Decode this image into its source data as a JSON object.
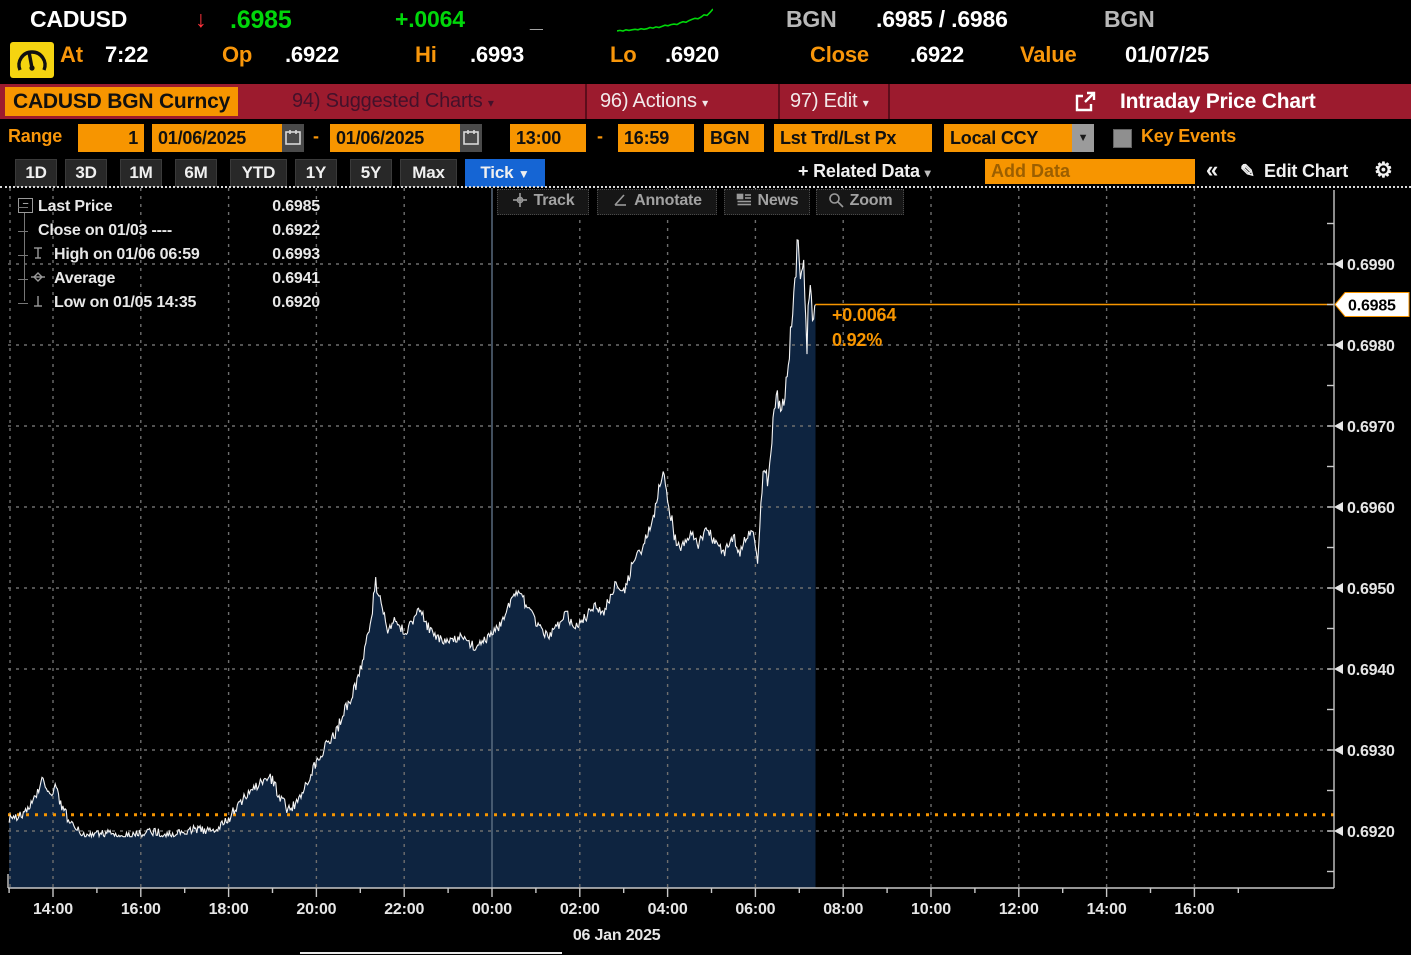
{
  "colors": {
    "accent_orange": "#f79500",
    "up_green": "#00d70a",
    "down_red": "#ff333c",
    "banner_red": "#9c1b2e",
    "active_blue": "#1565d4",
    "area_fill_navy": "#0e2440",
    "grid_gray": "#6e6e6e",
    "line_white": "#f5f5f5"
  },
  "quote_bar": {
    "ticker": "CADUSD",
    "direction_arrow": "↓",
    "last": ".6985",
    "change": "+.0064",
    "dash": "_",
    "source_left": "BGN",
    "bid_ask": ".6985 / .6986",
    "source_right": "BGN",
    "sparkline": [
      2,
      2.5,
      2,
      3,
      2.5,
      3,
      3.5,
      3,
      4,
      3.5,
      4,
      5,
      4.5,
      5.5,
      5,
      6,
      7,
      6.5,
      7.5,
      8,
      7.5,
      9,
      10,
      9.5,
      11,
      12,
      13,
      12.5,
      14,
      16,
      15.5,
      18,
      21
    ]
  },
  "stats_bar": {
    "items": [
      {
        "label": "At",
        "value": "7:22"
      },
      {
        "label": "Op",
        "value": ".6922"
      },
      {
        "label": "Hi",
        "value": ".6993"
      },
      {
        "label": "Lo",
        "value": ".6920"
      },
      {
        "label": "Close",
        "value": ".6922"
      },
      {
        "label": "Value",
        "value": "01/07/25"
      }
    ]
  },
  "banner": {
    "security": "CADUSD BGN Curncy",
    "menus": [
      {
        "label": "94) Suggested Charts",
        "arrow": "▾",
        "disabled": true
      },
      {
        "label": "96) Actions",
        "arrow": "▾",
        "disabled": false
      },
      {
        "label": "97) Edit",
        "arrow": "▾",
        "disabled": false
      }
    ],
    "title": "Intraday Price Chart"
  },
  "range_bar": {
    "label": "Range",
    "count": "1",
    "date_from": "01/06/2025",
    "date_to": "01/06/2025",
    "separator": "-",
    "time_from": "13:00",
    "time_to": "16:59",
    "source": "BGN",
    "price_type": "Lst Trd/Lst Px",
    "currency": "Local CCY",
    "key_events_label": "Key Events"
  },
  "period_tabs": {
    "tabs": [
      "1D",
      "3D",
      "1M",
      "6M",
      "YTD",
      "1Y",
      "5Y",
      "Max"
    ],
    "active_label": "Tick",
    "active_arrow": "▼"
  },
  "data_toolbar": {
    "related": "+ Related Data",
    "related_arrow": "▾",
    "add_data_placeholder": "Add Data",
    "collapse": "«",
    "pencil": "✎",
    "edit_chart": "Edit Chart",
    "gear": "⚙"
  },
  "chart_toolbar": {
    "buttons": [
      {
        "icon": "track-icon",
        "label": "Track"
      },
      {
        "icon": "annotate-icon",
        "label": "Annotate"
      },
      {
        "icon": "news-icon",
        "label": "News"
      },
      {
        "icon": "zoom-icon",
        "label": "Zoom"
      }
    ]
  },
  "legend": {
    "items": [
      {
        "swatch": "white-square",
        "label": "Last Price",
        "value": "0.6985"
      },
      {
        "swatch": "orange-square",
        "label": "Close on 01/03 ----",
        "value": "0.6922"
      },
      {
        "swatch": "high-marker",
        "label": "High on 01/06 06:59",
        "value": "0.6993"
      },
      {
        "swatch": "average-marker",
        "label": "Average",
        "value": "0.6941"
      },
      {
        "swatch": "low-marker",
        "label": "Low on 01/05 14:35",
        "value": "0.6920"
      }
    ]
  },
  "annotation": {
    "change": "+0.0064",
    "percent": "0.92%"
  },
  "chart_data": {
    "type": "line",
    "title": "CADUSD BGN Curncy intraday tick price",
    "x_unit": "hours since 05 Jan 2025 13:00",
    "x_tick_labels": [
      "14:00",
      "16:00",
      "18:00",
      "20:00",
      "22:00",
      "00:00",
      "02:00",
      "04:00",
      "06:00",
      "08:00",
      "10:00",
      "12:00",
      "14:00",
      "16:00"
    ],
    "x_tick_start_t": 1,
    "x_tick_step_h": 2,
    "midnight_t": 11,
    "date_label": "06 Jan 2025",
    "date_label_t": 13.84,
    "y_ticks": [
      0.699,
      0.698,
      0.697,
      0.696,
      0.695,
      0.694,
      0.693,
      0.692
    ],
    "y_minor_step": 0.0005,
    "ylim": [
      0.6913,
      0.6999
    ],
    "grid": true,
    "last_price": 0.6985,
    "close_line": 0.6922,
    "open": 0.6922,
    "high": 0.6993,
    "low": 0.692,
    "average": 0.6941,
    "data_end_t": 18.37,
    "anchors": [
      [
        0.0,
        0.69215
      ],
      [
        0.3,
        0.6922
      ],
      [
        0.55,
        0.69235
      ],
      [
        0.75,
        0.69262
      ],
      [
        0.9,
        0.69245
      ],
      [
        1.05,
        0.69252
      ],
      [
        1.2,
        0.6923
      ],
      [
        1.45,
        0.69205
      ],
      [
        1.7,
        0.69195
      ],
      [
        2.2,
        0.69198
      ],
      [
        2.7,
        0.69193
      ],
      [
        3.2,
        0.692
      ],
      [
        3.7,
        0.69195
      ],
      [
        4.2,
        0.69202
      ],
      [
        4.7,
        0.692
      ],
      [
        5.0,
        0.69215
      ],
      [
        5.2,
        0.69232
      ],
      [
        5.45,
        0.69245
      ],
      [
        5.7,
        0.69258
      ],
      [
        5.95,
        0.69268
      ],
      [
        6.15,
        0.69245
      ],
      [
        6.35,
        0.69225
      ],
      [
        6.55,
        0.69235
      ],
      [
        6.75,
        0.69258
      ],
      [
        7.0,
        0.69285
      ],
      [
        7.2,
        0.69305
      ],
      [
        7.45,
        0.69322
      ],
      [
        7.7,
        0.69355
      ],
      [
        7.95,
        0.69385
      ],
      [
        8.15,
        0.69435
      ],
      [
        8.35,
        0.69505
      ],
      [
        8.5,
        0.69475
      ],
      [
        8.65,
        0.69445
      ],
      [
        8.8,
        0.69465
      ],
      [
        9.0,
        0.69442
      ],
      [
        9.2,
        0.69458
      ],
      [
        9.35,
        0.69478
      ],
      [
        9.55,
        0.69452
      ],
      [
        9.75,
        0.69438
      ],
      [
        10.0,
        0.69432
      ],
      [
        10.3,
        0.6944
      ],
      [
        10.6,
        0.69428
      ],
      [
        10.9,
        0.69438
      ],
      [
        11.15,
        0.69452
      ],
      [
        11.4,
        0.69478
      ],
      [
        11.6,
        0.69495
      ],
      [
        11.8,
        0.69478
      ],
      [
        12.0,
        0.69455
      ],
      [
        12.25,
        0.6944
      ],
      [
        12.5,
        0.69452
      ],
      [
        12.7,
        0.69468
      ],
      [
        12.9,
        0.6945
      ],
      [
        13.1,
        0.69462
      ],
      [
        13.35,
        0.69478
      ],
      [
        13.55,
        0.69468
      ],
      [
        13.8,
        0.69505
      ],
      [
        14.0,
        0.69495
      ],
      [
        14.2,
        0.69528
      ],
      [
        14.45,
        0.69552
      ],
      [
        14.7,
        0.69592
      ],
      [
        14.88,
        0.69645
      ],
      [
        15.0,
        0.69618
      ],
      [
        15.15,
        0.69565
      ],
      [
        15.3,
        0.69545
      ],
      [
        15.5,
        0.69568
      ],
      [
        15.7,
        0.69555
      ],
      [
        15.9,
        0.69572
      ],
      [
        16.1,
        0.69555
      ],
      [
        16.3,
        0.69542
      ],
      [
        16.5,
        0.69565
      ],
      [
        16.65,
        0.69542
      ],
      [
        16.8,
        0.69565
      ],
      [
        16.95,
        0.69572
      ],
      [
        17.05,
        0.69535
      ],
      [
        17.12,
        0.69615
      ],
      [
        17.2,
        0.69648
      ],
      [
        17.3,
        0.69625
      ],
      [
        17.4,
        0.69705
      ],
      [
        17.5,
        0.69742
      ],
      [
        17.58,
        0.69712
      ],
      [
        17.68,
        0.69745
      ],
      [
        17.78,
        0.69792
      ],
      [
        17.88,
        0.69865
      ],
      [
        17.97,
        0.6993
      ],
      [
        18.03,
        0.6989
      ],
      [
        18.1,
        0.69905
      ],
      [
        18.17,
        0.698
      ],
      [
        18.24,
        0.6987
      ],
      [
        18.3,
        0.69835
      ],
      [
        18.37,
        0.6985
      ]
    ]
  }
}
